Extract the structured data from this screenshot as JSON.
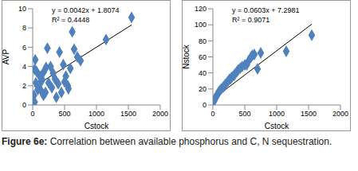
{
  "chart_data": [
    {
      "type": "scatter",
      "x_label": "Cstock",
      "y_label": "AVP",
      "annotations": [
        "y = 0.0042x + 1.8074",
        "R² = 0.4448"
      ],
      "trendline": {
        "slope": 0.0042,
        "intercept": 1.8074
      },
      "x": [
        20,
        30,
        30,
        40,
        50,
        60,
        80,
        100,
        110,
        130,
        150,
        170,
        170,
        200,
        210,
        230,
        250,
        280,
        300,
        320,
        350,
        370,
        400,
        420,
        450,
        480,
        500,
        520,
        550,
        560,
        590,
        620,
        650,
        700,
        750,
        1150,
        1550
      ],
      "values": [
        1.0,
        3.7,
        0.3,
        4.7,
        2.3,
        3.5,
        1.6,
        2.1,
        3.0,
        1.5,
        2.6,
        3.4,
        1.0,
        1.3,
        3.9,
        5.9,
        2.3,
        4.0,
        1.8,
        3.3,
        2.7,
        0.8,
        2.2,
        5.5,
        1.3,
        4.2,
        2.4,
        3.0,
        2.0,
        1.7,
        3.8,
        7.6,
        5.8,
        5.0,
        4.6,
        6.8,
        9.1
      ],
      "color": "#4f81bd",
      "marker": "diamond",
      "grid": false,
      "xlim": [
        0,
        2000
      ],
      "xticks": [
        0,
        500,
        1000,
        1500,
        2000
      ],
      "ylim": [
        0,
        10
      ],
      "yticks": [
        0,
        2,
        4,
        6,
        8,
        10
      ]
    },
    {
      "type": "scatter",
      "x_label": "Cstock",
      "y_label": "Nstock",
      "annotations": [
        "y = 0.0603x + 7.2981",
        "R² = 0.9071"
      ],
      "trendline": {
        "slope": 0.0603,
        "intercept": 7.2981
      },
      "x": [
        20,
        30,
        50,
        70,
        90,
        110,
        130,
        160,
        180,
        200,
        230,
        260,
        280,
        300,
        330,
        350,
        380,
        400,
        430,
        460,
        500,
        530,
        560,
        600,
        620,
        650,
        700,
        750,
        1150,
        1550
      ],
      "values": [
        5,
        8,
        10,
        13,
        16,
        18,
        20,
        22,
        24,
        26,
        29,
        32,
        33,
        35,
        37,
        39,
        42,
        44,
        46,
        48,
        50,
        50,
        55,
        60,
        62,
        63,
        45,
        65,
        67,
        87
      ],
      "color": "#4f81bd",
      "marker": "diamond",
      "grid": false,
      "xlim": [
        0,
        2000
      ],
      "xticks": [
        0,
        500,
        1000,
        1500,
        2000
      ],
      "ylim": [
        0,
        120
      ],
      "yticks": [
        0,
        20,
        40,
        60,
        80,
        100,
        120
      ]
    }
  ],
  "caption": {
    "label": "Figure 6e:",
    "text": "Correlation between available phosphorus and C, N sequestration."
  }
}
